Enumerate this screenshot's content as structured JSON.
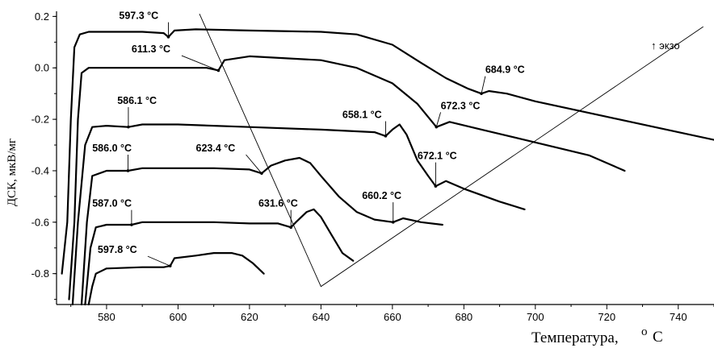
{
  "chart_data": {
    "type": "line",
    "ylabel": "ДСК, мкВ/мг",
    "xlabel": "Температура,",
    "xunit_sup": "o",
    "xunit": "C",
    "exo_label": "↑ экзо",
    "xlim": [
      566,
      750
    ],
    "ylim": [
      -0.92,
      0.22
    ],
    "x_ticks": [
      580,
      600,
      620,
      640,
      660,
      680,
      700,
      720,
      740
    ],
    "y_ticks": [
      0.2,
      0.0,
      -0.2,
      -0.4,
      -0.6,
      -0.8
    ],
    "y_tick_labels": [
      "0.2",
      "0.0",
      "-0.2",
      "-0.4",
      "-0.6",
      "-0.8"
    ],
    "series": [
      {
        "color": "#000000",
        "points": [
          [
            567.5,
            -0.8
          ],
          [
            569,
            -0.6
          ],
          [
            570,
            -0.2
          ],
          [
            571,
            0.08
          ],
          [
            572.5,
            0.13
          ],
          [
            575,
            0.14
          ],
          [
            580,
            0.14
          ],
          [
            590,
            0.14
          ],
          [
            596,
            0.135
          ],
          [
            597.3,
            0.12
          ],
          [
            599,
            0.145
          ],
          [
            605,
            0.15
          ],
          [
            620,
            0.145
          ],
          [
            640,
            0.14
          ],
          [
            650,
            0.13
          ],
          [
            660,
            0.09
          ],
          [
            668,
            0.02
          ],
          [
            675,
            -0.04
          ],
          [
            681,
            -0.08
          ],
          [
            684.9,
            -0.1
          ],
          [
            687,
            -0.09
          ],
          [
            692,
            -0.1
          ],
          [
            700,
            -0.13
          ],
          [
            720,
            -0.19
          ],
          [
            740,
            -0.25
          ],
          [
            750,
            -0.28
          ]
        ]
      },
      {
        "color": "#000000",
        "points": [
          [
            569.5,
            -0.9
          ],
          [
            571,
            -0.6
          ],
          [
            572,
            -0.2
          ],
          [
            573,
            -0.02
          ],
          [
            575,
            0.0
          ],
          [
            580,
            0.0
          ],
          [
            590,
            0.0
          ],
          [
            600,
            0.0
          ],
          [
            608,
            0.0
          ],
          [
            611.3,
            -0.01
          ],
          [
            613,
            0.03
          ],
          [
            620,
            0.045
          ],
          [
            640,
            0.03
          ],
          [
            650,
            0.0
          ],
          [
            660,
            -0.06
          ],
          [
            667,
            -0.14
          ],
          [
            672.3,
            -0.23
          ],
          [
            676,
            -0.21
          ],
          [
            685,
            -0.24
          ],
          [
            700,
            -0.29
          ],
          [
            715,
            -0.34
          ],
          [
            725,
            -0.4
          ]
        ]
      },
      {
        "color": "#000000",
        "points": [
          [
            570.5,
            -0.92
          ],
          [
            572,
            -0.6
          ],
          [
            574,
            -0.3
          ],
          [
            576,
            -0.23
          ],
          [
            580,
            -0.225
          ],
          [
            586.1,
            -0.23
          ],
          [
            590,
            -0.22
          ],
          [
            600,
            -0.22
          ],
          [
            620,
            -0.23
          ],
          [
            640,
            -0.24
          ],
          [
            655,
            -0.25
          ],
          [
            658.1,
            -0.265
          ],
          [
            660,
            -0.24
          ],
          [
            662,
            -0.22
          ],
          [
            664,
            -0.26
          ],
          [
            667,
            -0.36
          ],
          [
            670,
            -0.42
          ],
          [
            672.1,
            -0.46
          ],
          [
            675,
            -0.44
          ],
          [
            680,
            -0.47
          ],
          [
            690,
            -0.52
          ],
          [
            697,
            -0.55
          ]
        ]
      },
      {
        "color": "#000000",
        "points": [
          [
            573,
            -0.92
          ],
          [
            574.5,
            -0.6
          ],
          [
            576,
            -0.42
          ],
          [
            580,
            -0.4
          ],
          [
            586.0,
            -0.4
          ],
          [
            590,
            -0.39
          ],
          [
            600,
            -0.39
          ],
          [
            610,
            -0.39
          ],
          [
            620,
            -0.395
          ],
          [
            623.4,
            -0.41
          ],
          [
            626,
            -0.38
          ],
          [
            630,
            -0.36
          ],
          [
            634,
            -0.35
          ],
          [
            637,
            -0.37
          ],
          [
            640,
            -0.42
          ],
          [
            645,
            -0.5
          ],
          [
            650,
            -0.56
          ],
          [
            655,
            -0.59
          ],
          [
            660.2,
            -0.6
          ],
          [
            663,
            -0.585
          ],
          [
            668,
            -0.6
          ],
          [
            674,
            -0.61
          ]
        ]
      },
      {
        "color": "#000000",
        "points": [
          [
            574,
            -0.92
          ],
          [
            575.5,
            -0.7
          ],
          [
            577,
            -0.62
          ],
          [
            580,
            -0.61
          ],
          [
            587.0,
            -0.61
          ],
          [
            590,
            -0.6
          ],
          [
            600,
            -0.6
          ],
          [
            610,
            -0.6
          ],
          [
            620,
            -0.605
          ],
          [
            628,
            -0.605
          ],
          [
            631.6,
            -0.62
          ],
          [
            633,
            -0.6
          ],
          [
            636,
            -0.56
          ],
          [
            638,
            -0.55
          ],
          [
            640,
            -0.58
          ],
          [
            643,
            -0.65
          ],
          [
            646,
            -0.72
          ],
          [
            649,
            -0.75
          ]
        ]
      },
      {
        "color": "#000000",
        "points": [
          [
            575,
            -0.92
          ],
          [
            576,
            -0.85
          ],
          [
            577,
            -0.8
          ],
          [
            580,
            -0.78
          ],
          [
            590,
            -0.775
          ],
          [
            596,
            -0.775
          ],
          [
            597.8,
            -0.77
          ],
          [
            599,
            -0.74
          ],
          [
            605,
            -0.73
          ],
          [
            610,
            -0.72
          ],
          [
            615,
            -0.72
          ],
          [
            618,
            -0.73
          ],
          [
            621,
            -0.76
          ],
          [
            624,
            -0.8
          ]
        ]
      }
    ],
    "guide_lines": [
      [
        [
          606,
          0.21
        ],
        [
          640,
          -0.85
        ],
        [
          747,
          0.16
        ]
      ]
    ],
    "annotations": [
      {
        "text": "597.3 °C",
        "label_at": [
          583.5,
          0.19
        ],
        "point": [
          597.3,
          0.12
        ]
      },
      {
        "text": "611.3 °C",
        "label_at": [
          587,
          0.06
        ],
        "point": [
          611.3,
          -0.01
        ]
      },
      {
        "text": "684.9 °C",
        "label_at": [
          686,
          -0.02
        ],
        "point": [
          684.9,
          -0.1
        ]
      },
      {
        "text": "586.1 °C",
        "label_at": [
          583,
          -0.14
        ],
        "point": [
          586.1,
          -0.23
        ]
      },
      {
        "text": "658.1 °C",
        "label_at": [
          646,
          -0.195
        ],
        "point": [
          658.1,
          -0.265
        ]
      },
      {
        "text": "672.3 °C",
        "label_at": [
          673.5,
          -0.16
        ],
        "point": [
          672.3,
          -0.23
        ]
      },
      {
        "text": "586.0 °C",
        "label_at": [
          576,
          -0.325
        ],
        "point": [
          586.0,
          -0.4
        ]
      },
      {
        "text": "623.4 °C",
        "label_at": [
          605,
          -0.325
        ],
        "point": [
          623.4,
          -0.41
        ]
      },
      {
        "text": "672.1 °C",
        "label_at": [
          667,
          -0.355
        ],
        "point": [
          672.1,
          -0.46
        ]
      },
      {
        "text": "660.2 °C",
        "label_at": [
          651.5,
          -0.51
        ],
        "point": [
          660.2,
          -0.6
        ]
      },
      {
        "text": "587.0 °C",
        "label_at": [
          576,
          -0.54
        ],
        "point": [
          587.0,
          -0.61
        ]
      },
      {
        "text": "631.6 °C",
        "label_at": [
          622.5,
          -0.54
        ],
        "point": [
          631.6,
          -0.62
        ]
      },
      {
        "text": "597.8 °C",
        "label_at": [
          577.5,
          -0.72
        ],
        "point": [
          597.8,
          -0.77
        ]
      }
    ]
  }
}
